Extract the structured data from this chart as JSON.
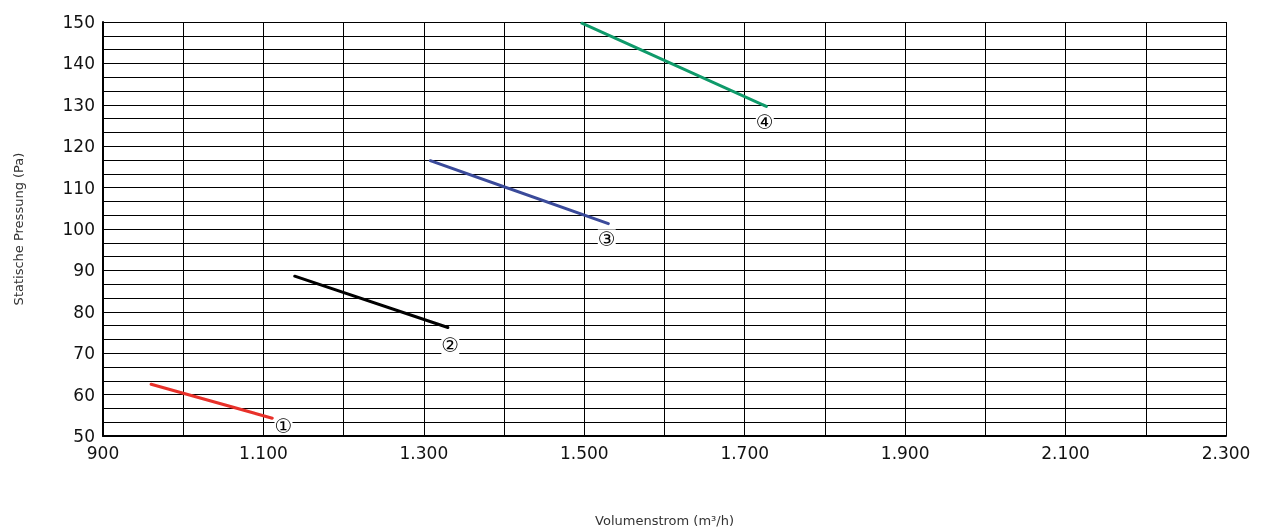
{
  "chart_data": {
    "type": "line",
    "xlabel": "Volumenstrom (m³/h)",
    "ylabel": "Statische Pressung (Pa)",
    "series": [
      {
        "color": "#e8312a",
        "x": [
          960,
          1111
        ],
        "values": [
          62.5,
          54.3
        ]
      },
      {
        "color": "#000000",
        "x": [
          1139,
          1330
        ],
        "values": [
          88.6,
          76.2
        ]
      },
      {
        "color": "#3a4a9a",
        "x": [
          1308,
          1530
        ],
        "values": [
          116.5,
          101.3
        ]
      },
      {
        "color": "#0f9a6a",
        "x": [
          1497,
          1727
        ],
        "values": [
          149.7,
          129.6
        ]
      }
    ],
    "xlim": [
      900,
      2300
    ],
    "xticks": [
      900,
      {
        "value": 1000,
        "label": null
      },
      {
        "value": 1100,
        "label": "1.100"
      },
      {
        "value": 1200,
        "label": null
      },
      {
        "value": 1300,
        "label": "1.300"
      },
      {
        "value": 1400,
        "label": null
      },
      {
        "value": 1500,
        "label": "1.500"
      },
      {
        "value": 1600,
        "label": null
      },
      {
        "value": 1700,
        "label": "1.700"
      },
      {
        "value": 1800,
        "label": null
      },
      {
        "value": 1900,
        "label": "1.900"
      },
      {
        "value": 2000,
        "label": null
      },
      {
        "value": 2100,
        "label": "2.100"
      },
      {
        "value": 2200,
        "label": null
      },
      {
        "value": 2300,
        "label": "2.300"
      }
    ],
    "ylim": [
      50,
      150
    ],
    "yticks": [
      50,
      60,
      70,
      80,
      90,
      100,
      110,
      120,
      130,
      140,
      150
    ],
    "grid": true,
    "marker": "none",
    "line_style": "solid",
    "annotations": [
      {
        "text": "①",
        "x": 1125,
        "y": 52.5
      },
      {
        "text": "②",
        "x": 1333,
        "y": 72
      },
      {
        "text": "③",
        "x": 1528,
        "y": 97.5
      },
      {
        "text": "④",
        "x": 1725,
        "y": 125.9
      }
    ]
  }
}
